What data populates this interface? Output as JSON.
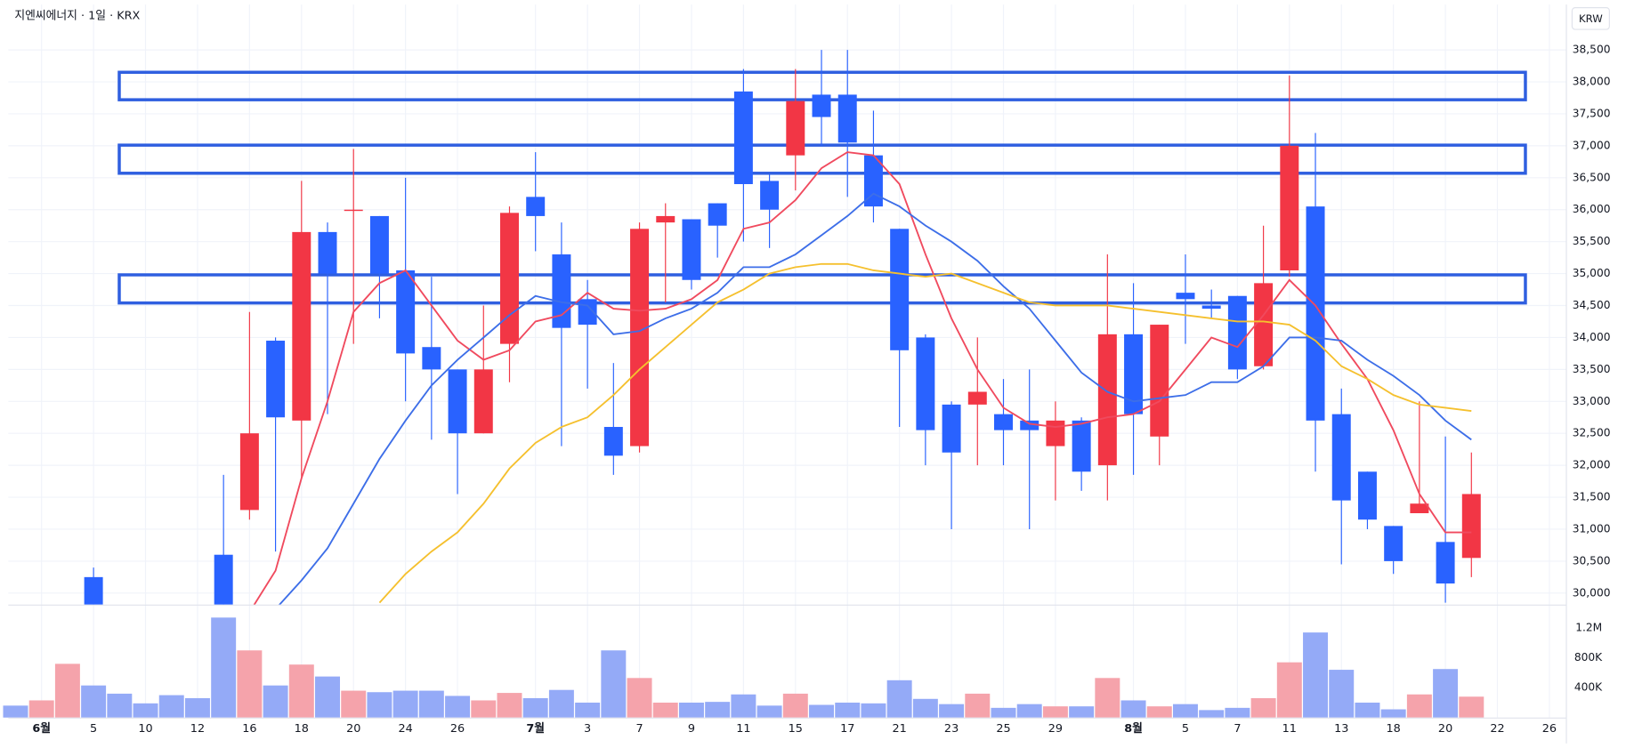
{
  "chart_data": {
    "type": "candlestick",
    "title": "지엔씨에너지 · 1일 · KRX",
    "currency": "KRW",
    "grid": true,
    "up_color": "#f23645",
    "down_color": "#2962ff",
    "categories": [
      null,
      "6월",
      null,
      "5",
      null,
      "10",
      null,
      "12",
      null,
      "16",
      null,
      "18",
      null,
      "20",
      null,
      "24",
      null,
      "26",
      null,
      null,
      "7월",
      null,
      "3",
      null,
      "7",
      null,
      "9",
      null,
      "11",
      null,
      "15",
      null,
      "17",
      null,
      "21",
      null,
      "23",
      null,
      "25",
      null,
      "29",
      null,
      null,
      "8월",
      null,
      "5",
      null,
      "7",
      null,
      "11",
      null,
      "13",
      null,
      "18",
      null,
      "20",
      null,
      "22",
      null,
      "26"
    ],
    "open": [
      null,
      null,
      null,
      30250,
      null,
      null,
      null,
      null,
      30600,
      31300,
      33950,
      32700,
      35650,
      35980,
      35900,
      35050,
      33850,
      33500,
      32500,
      33900,
      36200,
      35300,
      34600,
      32600,
      32300,
      35800,
      35850,
      36100,
      37850,
      36450,
      36850,
      37800,
      37800,
      36850,
      35700,
      34000,
      32950,
      32950,
      32800,
      32700,
      32300,
      32700,
      32000,
      34050,
      32450,
      34700,
      34500,
      34650,
      33550,
      35050,
      36050,
      32800,
      31900,
      31050,
      31250,
      30800,
      30550,
      null,
      null,
      null
    ],
    "high": [
      null,
      null,
      null,
      30400,
      null,
      null,
      null,
      null,
      31850,
      34400,
      34000,
      36450,
      35800,
      36950,
      35900,
      36500,
      34950,
      33500,
      34500,
      36050,
      36900,
      35800,
      34900,
      33600,
      35800,
      36100,
      35850,
      36100,
      38200,
      36550,
      38200,
      38500,
      38500,
      37550,
      35700,
      34050,
      33000,
      34000,
      33350,
      33500,
      33000,
      32750,
      35300,
      34850,
      34200,
      35300,
      34750,
      34650,
      35750,
      38100,
      37200,
      33200,
      31900,
      31050,
      33000,
      32450,
      32200,
      null,
      null,
      null
    ],
    "low": [
      null,
      null,
      null,
      29700,
      null,
      null,
      null,
      null,
      29500,
      31150,
      30650,
      31800,
      32800,
      33900,
      34300,
      33000,
      32400,
      31550,
      32500,
      33300,
      35350,
      32300,
      33200,
      31850,
      32200,
      34550,
      34750,
      35250,
      35500,
      35400,
      36300,
      37000,
      36200,
      35800,
      32600,
      32000,
      31000,
      32000,
      32000,
      31000,
      31450,
      31600,
      31450,
      31850,
      32000,
      33900,
      34300,
      33350,
      33500,
      34950,
      31900,
      30450,
      31000,
      30300,
      31250,
      29850,
      30250,
      null,
      null,
      null
    ],
    "close": [
      null,
      null,
      null,
      29800,
      null,
      null,
      null,
      null,
      29600,
      32500,
      32750,
      35650,
      35000,
      36000,
      35000,
      33750,
      33500,
      32500,
      33500,
      35950,
      35900,
      34150,
      34200,
      32150,
      35700,
      35900,
      34900,
      35750,
      36400,
      36000,
      37700,
      37450,
      37050,
      36050,
      33800,
      32550,
      32200,
      33150,
      32550,
      32550,
      32700,
      31900,
      34050,
      32800,
      34200,
      34600,
      34450,
      33500,
      34850,
      37000,
      32700,
      31450,
      31150,
      30500,
      31400,
      30150,
      31550,
      null,
      null,
      null
    ],
    "series": [
      {
        "color": "#f04a5e",
        "values": [
          null,
          null,
          null,
          null,
          null,
          null,
          null,
          null,
          null,
          29700,
          30350,
          31800,
          33000,
          34400,
          34850,
          35050,
          34500,
          33950,
          33650,
          33800,
          34250,
          34350,
          34700,
          34450,
          34420,
          34450,
          34600,
          34900,
          35700,
          35800,
          36150,
          36650,
          36900,
          36850,
          36400,
          35300,
          34300,
          33500,
          32900,
          32650,
          32600,
          32650,
          32750,
          32800,
          33000,
          33500,
          34000,
          33850,
          34350,
          34900,
          34500,
          33900,
          33350,
          32550,
          31550,
          30950,
          30950,
          null,
          null,
          null
        ]
      },
      {
        "color": "#3d6ee8",
        "values": [
          null,
          null,
          null,
          null,
          null,
          null,
          null,
          null,
          null,
          null,
          29750,
          30200,
          30700,
          31400,
          32100,
          32700,
          33250,
          33650,
          34000,
          34350,
          34650,
          34550,
          34500,
          34050,
          34100,
          34300,
          34450,
          34700,
          35100,
          35100,
          35300,
          35600,
          35900,
          36250,
          36050,
          35750,
          35500,
          35200,
          34800,
          34450,
          33950,
          33450,
          33150,
          33000,
          33050,
          33100,
          33300,
          33300,
          33550,
          34000,
          34000,
          33950,
          33650,
          33400,
          33100,
          32700,
          32400,
          null,
          null,
          null
        ]
      },
      {
        "color": "#f5c02e",
        "values": [
          null,
          null,
          null,
          null,
          null,
          null,
          null,
          null,
          null,
          null,
          null,
          null,
          null,
          null,
          29850,
          30300,
          30650,
          30950,
          31400,
          31950,
          32350,
          32600,
          32750,
          33100,
          33500,
          33850,
          34200,
          34550,
          34750,
          35000,
          35100,
          35150,
          35150,
          35050,
          35000,
          34950,
          35000,
          34850,
          34700,
          34550,
          34500,
          34500,
          34500,
          34450,
          34400,
          34350,
          34300,
          34250,
          34250,
          34200,
          33950,
          33550,
          33350,
          33100,
          32950,
          32900,
          32850,
          null,
          null,
          null
        ]
      }
    ],
    "ylim": [
      29820,
      39210
    ],
    "yticks": [
      {
        "value": 30000,
        "label": "30,000"
      },
      {
        "value": 30500,
        "label": "30,500"
      },
      {
        "value": 31000,
        "label": "31,000"
      },
      {
        "value": 31500,
        "label": "31,500"
      },
      {
        "value": 32000,
        "label": "32,000"
      },
      {
        "value": 32500,
        "label": "32,500"
      },
      {
        "value": 33000,
        "label": "33,000"
      },
      {
        "value": 33500,
        "label": "33,500"
      },
      {
        "value": 34000,
        "label": "34,000"
      },
      {
        "value": 34500,
        "label": "34,500"
      },
      {
        "value": 35000,
        "label": "35,000"
      },
      {
        "value": 35500,
        "label": "35,500"
      },
      {
        "value": 36000,
        "label": "36,000"
      },
      {
        "value": 36500,
        "label": "36,500"
      },
      {
        "value": 37000,
        "label": "37,000"
      },
      {
        "value": 37500,
        "label": "37,500"
      },
      {
        "value": 38000,
        "label": "38,000"
      },
      {
        "value": 38500,
        "label": "38,500"
      }
    ],
    "zones": [
      {
        "low": 37720,
        "high": 38150,
        "color": "#2f5fe0"
      },
      {
        "low": 36570,
        "high": 37010,
        "color": "#2f5fe0"
      },
      {
        "low": 34540,
        "high": 34980,
        "color": "#2f5fe0"
      }
    ],
    "volume": {
      "values": [
        160000,
        230000,
        720000,
        430000,
        320000,
        190000,
        300000,
        260000,
        1340000,
        900000,
        430000,
        710000,
        550000,
        360000,
        340000,
        360000,
        360000,
        290000,
        230000,
        330000,
        260000,
        370000,
        200000,
        900000,
        530000,
        200000,
        200000,
        210000,
        310000,
        160000,
        320000,
        170000,
        200000,
        190000,
        500000,
        250000,
        180000,
        320000,
        130000,
        180000,
        150000,
        150000,
        530000,
        230000,
        150000,
        180000,
        100000,
        130000,
        260000,
        740000,
        1140000,
        640000,
        200000,
        110000,
        310000,
        650000,
        280000,
        null,
        null,
        null
      ],
      "colors": [
        "#94aaf7",
        "#f5a3ab",
        "#f5a3ab",
        "#94aaf7",
        "#94aaf7",
        "#94aaf7",
        "#94aaf7",
        "#94aaf7",
        "#94aaf7",
        "#f5a3ab",
        "#94aaf7",
        "#f5a3ab",
        "#94aaf7",
        "#f5a3ab",
        "#94aaf7",
        "#94aaf7",
        "#94aaf7",
        "#94aaf7",
        "#f5a3ab",
        "#f5a3ab",
        "#94aaf7",
        "#94aaf7",
        "#94aaf7",
        "#94aaf7",
        "#f5a3ab",
        "#f5a3ab",
        "#94aaf7",
        "#94aaf7",
        "#94aaf7",
        "#94aaf7",
        "#f5a3ab",
        "#94aaf7",
        "#94aaf7",
        "#94aaf7",
        "#94aaf7",
        "#94aaf7",
        "#94aaf7",
        "#f5a3ab",
        "#94aaf7",
        "#94aaf7",
        "#f5a3ab",
        "#94aaf7",
        "#f5a3ab",
        "#94aaf7",
        "#f5a3ab",
        "#94aaf7",
        "#94aaf7",
        "#94aaf7",
        "#f5a3ab",
        "#f5a3ab",
        "#94aaf7",
        "#94aaf7",
        "#94aaf7",
        "#94aaf7",
        "#f5a3ab",
        "#94aaf7",
        "#f5a3ab",
        null,
        null,
        null
      ],
      "ylim": [
        0,
        1500000
      ],
      "yticks": [
        {
          "value": 400000,
          "label": "400K"
        },
        {
          "value": 800000,
          "label": "800K"
        },
        {
          "value": 1200000,
          "label": "1.2M"
        }
      ]
    }
  }
}
